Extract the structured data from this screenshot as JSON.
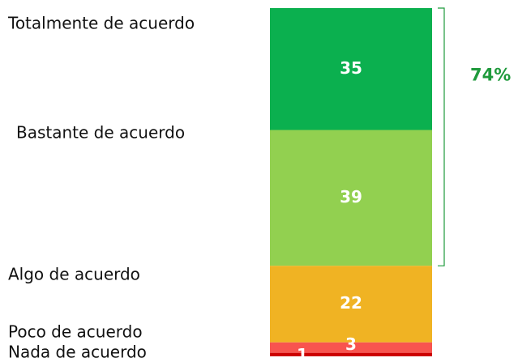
{
  "chart_data": {
    "type": "stacked-bar",
    "categories": [
      "Totalmente de acuerdo",
      "Bastante de acuerdo",
      "Algo de acuerdo",
      "Poco de acuerdo",
      "Nada de acuerdo"
    ],
    "values": [
      35,
      39,
      22,
      3,
      1
    ],
    "colors": [
      "#0bb04f",
      "#92d050",
      "#f0b323",
      "#f8544f",
      "#cc0000"
    ],
    "ylim": [
      0,
      100
    ],
    "annotation": "74%",
    "annotation_color": "#1f9a3c"
  }
}
